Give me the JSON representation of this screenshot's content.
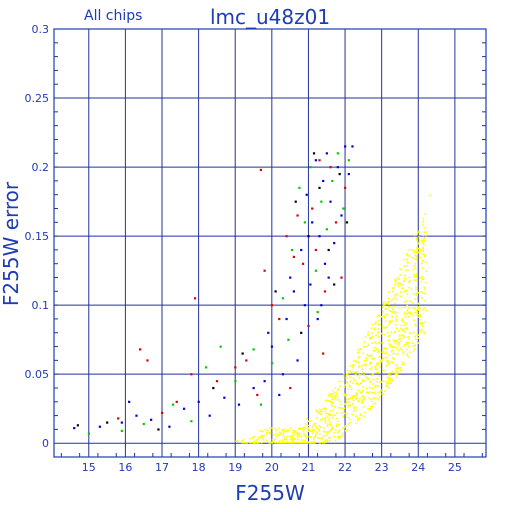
{
  "chart_data": {
    "type": "scatter",
    "title": "lmc_u48z01",
    "subtitle": "All chips",
    "xlabel": "F255W",
    "ylabel": "F255W error",
    "xlim": [
      14.05,
      25.85
    ],
    "ylim": [
      -0.01,
      0.3
    ],
    "xticks": [
      "15",
      "16",
      "17",
      "18",
      "19",
      "20",
      "21",
      "22",
      "23",
      "24",
      "25"
    ],
    "yticks": [
      "0",
      "0.05",
      "0.1",
      "0.15",
      "0.2",
      "0.25",
      "0.3"
    ],
    "grid": true,
    "colors": {
      "axis": "#1e3cb4",
      "grid": "#2332a0"
    },
    "note_values_estimated": true,
    "series": [
      {
        "color": "#0000dd",
        "points": [
          [
            14.6,
            0.011
          ],
          [
            15.3,
            0.012
          ],
          [
            15.9,
            0.015
          ],
          [
            16.1,
            0.03
          ],
          [
            16.3,
            0.02
          ],
          [
            16.7,
            0.017
          ],
          [
            17.2,
            0.012
          ],
          [
            17.6,
            0.025
          ],
          [
            18.0,
            0.03
          ],
          [
            18.3,
            0.02
          ],
          [
            18.7,
            0.033
          ],
          [
            19.1,
            0.028
          ],
          [
            19.5,
            0.04
          ],
          [
            19.8,
            0.045
          ],
          [
            20.0,
            0.07
          ],
          [
            20.2,
            0.035
          ],
          [
            20.4,
            0.09
          ],
          [
            20.5,
            0.12
          ],
          [
            20.7,
            0.06
          ],
          [
            20.8,
            0.14
          ],
          [
            20.9,
            0.1
          ],
          [
            20.95,
            0.18
          ],
          [
            21.05,
            0.115
          ],
          [
            21.1,
            0.16
          ],
          [
            21.2,
            0.205
          ],
          [
            21.25,
            0.09
          ],
          [
            21.3,
            0.15
          ],
          [
            21.4,
            0.19
          ],
          [
            21.45,
            0.13
          ],
          [
            21.5,
            0.21
          ],
          [
            21.6,
            0.175
          ],
          [
            21.7,
            0.145
          ],
          [
            21.8,
            0.2
          ],
          [
            21.9,
            0.165
          ],
          [
            22.0,
            0.215
          ],
          [
            22.1,
            0.195
          ],
          [
            22.2,
            0.215
          ],
          [
            21.35,
            0.1
          ],
          [
            21.55,
            0.12
          ],
          [
            20.6,
            0.11
          ],
          [
            19.9,
            0.08
          ],
          [
            20.3,
            0.05
          ]
        ]
      },
      {
        "color": "#dd0000",
        "points": [
          [
            15.8,
            0.018
          ],
          [
            16.4,
            0.068
          ],
          [
            16.6,
            0.06
          ],
          [
            17.0,
            0.022
          ],
          [
            17.4,
            0.03
          ],
          [
            17.8,
            0.05
          ],
          [
            17.9,
            0.105
          ],
          [
            18.5,
            0.045
          ],
          [
            19.0,
            0.055
          ],
          [
            19.3,
            0.06
          ],
          [
            19.6,
            0.035
          ],
          [
            19.8,
            0.125
          ],
          [
            20.0,
            0.1
          ],
          [
            20.2,
            0.09
          ],
          [
            20.4,
            0.15
          ],
          [
            20.6,
            0.135
          ],
          [
            20.7,
            0.165
          ],
          [
            20.85,
            0.13
          ],
          [
            21.0,
            0.085
          ],
          [
            21.1,
            0.17
          ],
          [
            21.2,
            0.14
          ],
          [
            21.3,
            0.205
          ],
          [
            21.45,
            0.11
          ],
          [
            21.6,
            0.2
          ],
          [
            21.75,
            0.16
          ],
          [
            21.9,
            0.12
          ],
          [
            22.0,
            0.185
          ],
          [
            19.7,
            0.198
          ],
          [
            20.5,
            0.04
          ],
          [
            21.4,
            0.065
          ]
        ]
      },
      {
        "color": "#00cc00",
        "points": [
          [
            15.0,
            0.007
          ],
          [
            15.9,
            0.009
          ],
          [
            16.5,
            0.014
          ],
          [
            17.3,
            0.028
          ],
          [
            17.8,
            0.016
          ],
          [
            18.2,
            0.055
          ],
          [
            18.6,
            0.07
          ],
          [
            19.0,
            0.045
          ],
          [
            19.5,
            0.068
          ],
          [
            19.7,
            0.028
          ],
          [
            20.0,
            0.058
          ],
          [
            20.3,
            0.105
          ],
          [
            20.55,
            0.14
          ],
          [
            20.75,
            0.185
          ],
          [
            20.9,
            0.16
          ],
          [
            21.05,
            0.2
          ],
          [
            21.2,
            0.125
          ],
          [
            21.35,
            0.175
          ],
          [
            21.5,
            0.155
          ],
          [
            21.65,
            0.19
          ],
          [
            21.8,
            0.21
          ],
          [
            21.95,
            0.17
          ],
          [
            22.1,
            0.205
          ],
          [
            21.25,
            0.095
          ],
          [
            20.45,
            0.075
          ]
        ]
      },
      {
        "color": "#000000",
        "points": [
          [
            14.7,
            0.013
          ],
          [
            15.5,
            0.015
          ],
          [
            16.9,
            0.01
          ],
          [
            18.4,
            0.04
          ],
          [
            19.2,
            0.065
          ],
          [
            20.1,
            0.11
          ],
          [
            20.8,
            0.08
          ],
          [
            21.0,
            0.15
          ],
          [
            21.3,
            0.185
          ],
          [
            21.55,
            0.14
          ],
          [
            21.7,
            0.115
          ],
          [
            21.85,
            0.195
          ],
          [
            22.05,
            0.16
          ],
          [
            20.65,
            0.175
          ],
          [
            21.15,
            0.21
          ]
        ]
      },
      {
        "color": "#ffff00",
        "description": "faint-star cloud",
        "cloud": {
          "x_min": 19.0,
          "x_max": 24.2,
          "floor_y": 0.002,
          "peak_x": 23.5,
          "spread": 0.045,
          "n": 1100
        },
        "points": [
          [
            19.0,
            0.002
          ],
          [
            19.5,
            0.002
          ],
          [
            20.0,
            0.003
          ],
          [
            20.5,
            0.005
          ],
          [
            21.0,
            0.01
          ],
          [
            21.5,
            0.02
          ],
          [
            22.0,
            0.035
          ],
          [
            22.5,
            0.05
          ],
          [
            23.0,
            0.08
          ],
          [
            23.5,
            0.11
          ],
          [
            24.0,
            0.15
          ],
          [
            24.3,
            0.18
          ]
        ]
      }
    ]
  }
}
